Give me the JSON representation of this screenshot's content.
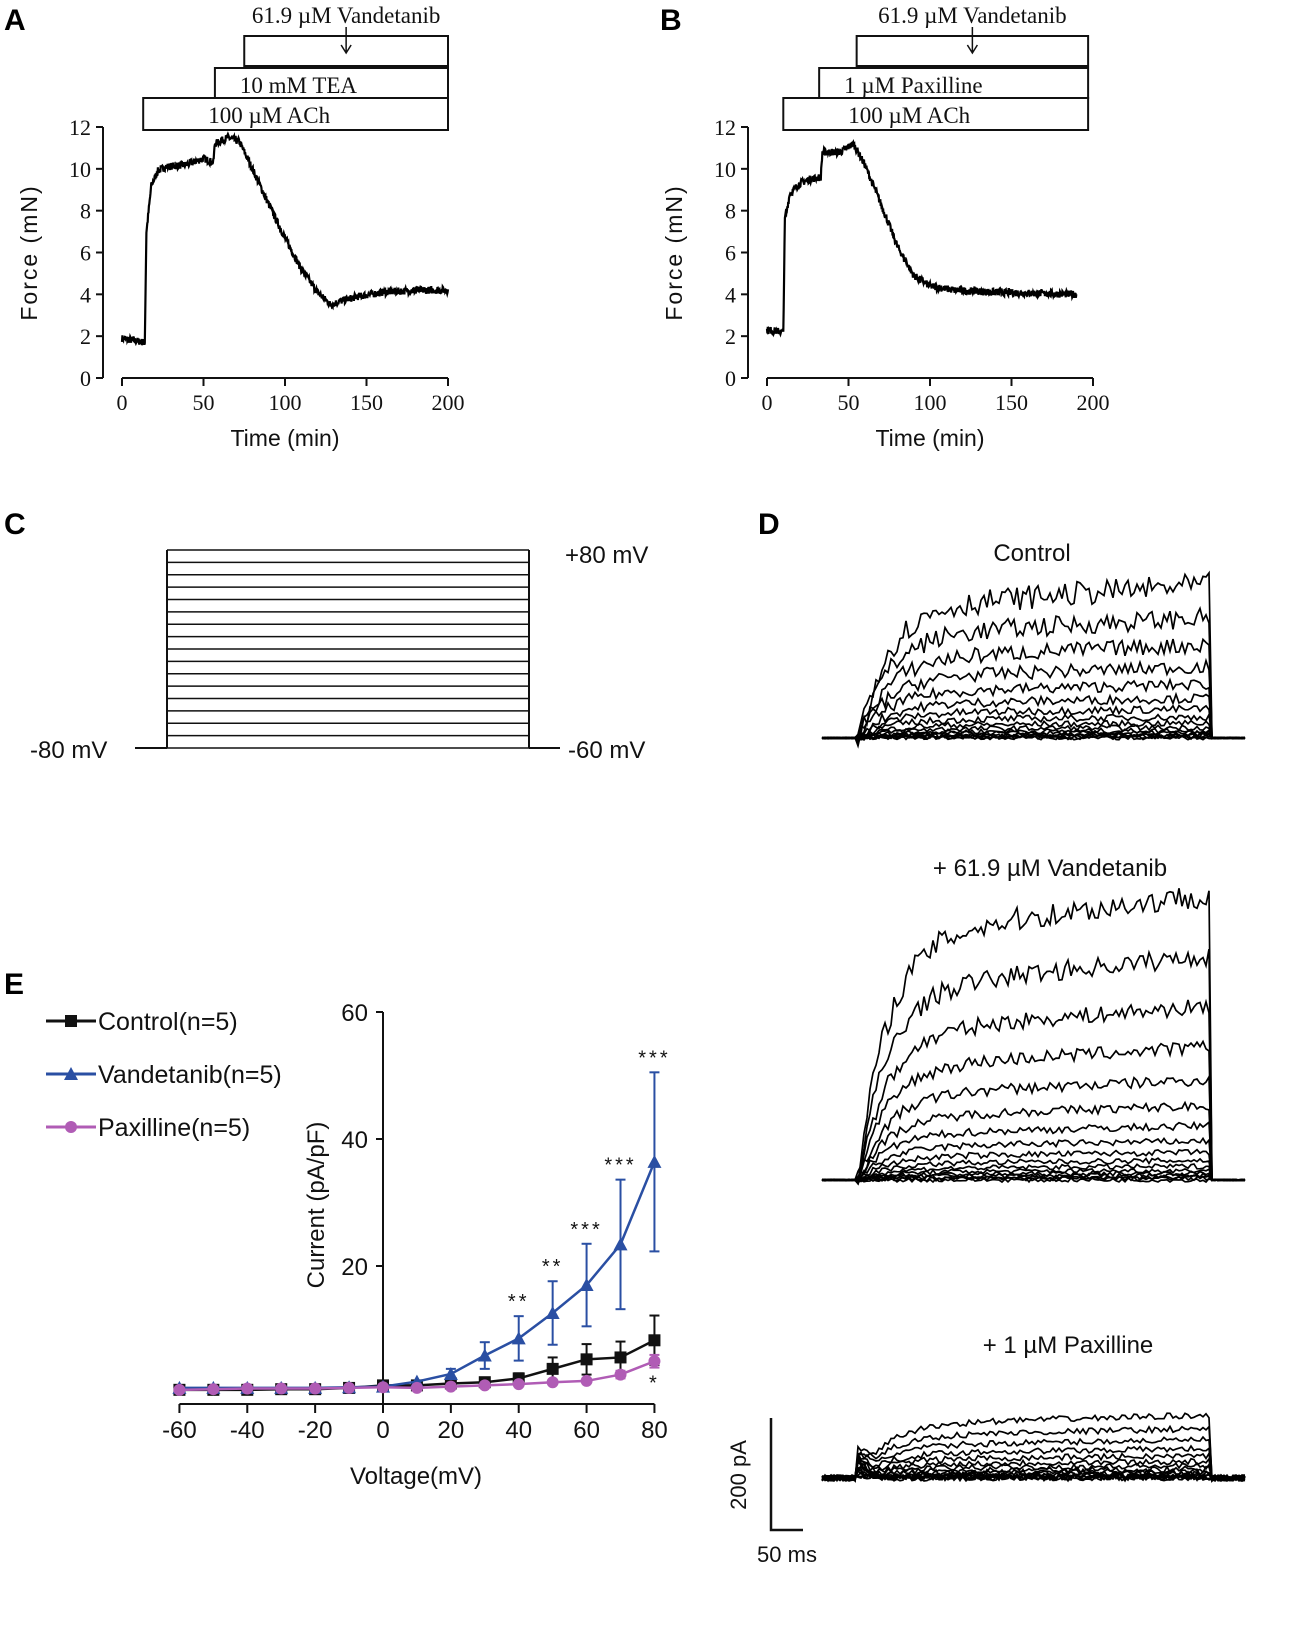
{
  "panel_letters": [
    "A",
    "B",
    "C",
    "D",
    "E"
  ],
  "chart_data": [
    {
      "panel": "A",
      "type": "line",
      "xlabel": "Time (min)",
      "ylabel": "Force (mN)",
      "xlim": [
        0,
        200
      ],
      "ylim": [
        0,
        12
      ],
      "xticks": [
        "0",
        "50",
        "100",
        "150",
        "200"
      ],
      "yticks": [
        "0",
        "2",
        "4",
        "6",
        "8",
        "10",
        "12"
      ],
      "treatments": [
        {
          "label": "100 µM ACh",
          "start": 13,
          "end": 200
        },
        {
          "label": "10 mM TEA",
          "start": 57,
          "end": 200
        },
        {
          "label": "",
          "start": 75,
          "end": 200
        }
      ],
      "arrow_label": "61.9 µM Vandetanib",
      "trace": [
        [
          0,
          1.9
        ],
        [
          14,
          1.7
        ],
        [
          15,
          7
        ],
        [
          18,
          9.2
        ],
        [
          22,
          9.9
        ],
        [
          27,
          10.1
        ],
        [
          40,
          10.2
        ],
        [
          50,
          10.5
        ],
        [
          56,
          10.3
        ],
        [
          57,
          11.2
        ],
        [
          65,
          11.5
        ],
        [
          72,
          11.3
        ],
        [
          80,
          10
        ],
        [
          90,
          8.3
        ],
        [
          100,
          6.7
        ],
        [
          110,
          5.2
        ],
        [
          120,
          4.1
        ],
        [
          128,
          3.5
        ],
        [
          135,
          3.7
        ],
        [
          145,
          3.9
        ],
        [
          160,
          4.1
        ],
        [
          180,
          4.2
        ],
        [
          200,
          4.2
        ]
      ]
    },
    {
      "panel": "B",
      "type": "line",
      "xlabel": "Time (min)",
      "ylabel": "Force (mN)",
      "xlim": [
        0,
        200
      ],
      "ylim": [
        0,
        12
      ],
      "xticks": [
        "0",
        "50",
        "100",
        "150",
        "200"
      ],
      "yticks": [
        "0",
        "2",
        "4",
        "6",
        "8",
        "10",
        "12"
      ],
      "treatments": [
        {
          "label": "100 µM ACh",
          "start": 10,
          "end": 197
        },
        {
          "label": "1 µM Paxilline",
          "start": 32,
          "end": 197
        },
        {
          "label": "",
          "start": 55,
          "end": 197
        }
      ],
      "arrow_label": "61.9 µM Vandetanib",
      "trace": [
        [
          0,
          2.3
        ],
        [
          10,
          2.2
        ],
        [
          11,
          7.6
        ],
        [
          14,
          8.8
        ],
        [
          20,
          9.3
        ],
        [
          26,
          9.5
        ],
        [
          33,
          9.6
        ],
        [
          34,
          10.8
        ],
        [
          45,
          10.8
        ],
        [
          53,
          11.2
        ],
        [
          60,
          10.2
        ],
        [
          70,
          8.3
        ],
        [
          80,
          6.3
        ],
        [
          90,
          4.9
        ],
        [
          100,
          4.4
        ],
        [
          115,
          4.2
        ],
        [
          140,
          4.1
        ],
        [
          190,
          4.0
        ]
      ]
    },
    {
      "panel": "C",
      "type": "line",
      "title": "Voltage step protocol",
      "step_labels": {
        "top": "+80 mV",
        "holding": "-80 mV",
        "tail": "-60 mV"
      },
      "steps_mV": [
        -80,
        -70,
        -60,
        -50,
        -40,
        -30,
        -20,
        -10,
        0,
        10,
        20,
        30,
        40,
        50,
        60,
        70,
        80
      ]
    },
    {
      "panel": "D",
      "type": "line",
      "traces": [
        {
          "title": "Control",
          "max_relative_amplitude": 0.55
        },
        {
          "title": "+  61.9 µM Vandetanib",
          "max_relative_amplitude": 1.0
        },
        {
          "title": "+ 1 µM Paxilline",
          "max_relative_amplitude": 0.22
        }
      ],
      "sweeps": 17,
      "scale_bar": {
        "current": "200 pA",
        "time": "50 ms"
      }
    },
    {
      "panel": "E",
      "type": "line",
      "xlabel": "Voltage(mV)",
      "ylabel": "Current (pA/pF)",
      "xlim": [
        -60,
        80
      ],
      "ylim": [
        0,
        60
      ],
      "xticks": [
        "-60",
        "-40",
        "-20",
        "0",
        "20",
        "40",
        "60",
        "80"
      ],
      "yticks": [
        "20",
        "40",
        "60"
      ],
      "x": [
        -60,
        -50,
        -40,
        -30,
        -20,
        -10,
        0,
        10,
        20,
        30,
        40,
        50,
        60,
        70,
        80
      ],
      "legend_position": "top-left",
      "series": [
        {
          "name": "Control(n=5)",
          "color": "#111111",
          "marker": "square",
          "values": [
            0.5,
            0.5,
            0.5,
            0.6,
            0.6,
            0.8,
            1.2,
            1.2,
            1.5,
            1.7,
            2.3,
            3.8,
            5.3,
            5.6,
            8.3
          ],
          "errors": [
            0.2,
            0.2,
            0.2,
            0.2,
            0.2,
            0.2,
            0.3,
            0.3,
            0.4,
            0.6,
            0.8,
            1.8,
            2.4,
            2.5,
            3.9
          ]
        },
        {
          "name": "Vandetanib(n=5)",
          "color": "#2a4fa3",
          "marker": "triangle",
          "values": [
            0.8,
            0.8,
            0.8,
            0.8,
            0.8,
            0.9,
            1.0,
            1.8,
            3.0,
            5.9,
            8.6,
            12.6,
            17.0,
            23.4,
            36.4
          ],
          "errors": [
            0.2,
            0.2,
            0.2,
            0.2,
            0.2,
            0.2,
            0.3,
            0.5,
            0.8,
            2.1,
            3.5,
            5.0,
            6.5,
            10.2,
            14.1
          ]
        },
        {
          "name": "Paxilline(n=5)",
          "color": "#b05cb5",
          "marker": "circle",
          "values": [
            0.5,
            0.6,
            0.7,
            0.7,
            0.7,
            0.8,
            0.9,
            0.8,
            1.0,
            1.2,
            1.4,
            1.7,
            1.9,
            2.9,
            5.0
          ],
          "errors": [
            0.2,
            0.2,
            0.2,
            0.2,
            0.2,
            0.2,
            0.2,
            0.2,
            0.3,
            0.3,
            0.3,
            0.4,
            0.5,
            0.6,
            1.0
          ]
        }
      ],
      "significance": [
        {
          "x": 40,
          "label": "**"
        },
        {
          "x": 50,
          "label": "**"
        },
        {
          "x": 60,
          "label": "***"
        },
        {
          "x": 70,
          "label": "***"
        },
        {
          "x": 80,
          "label": "***"
        },
        {
          "x": 80,
          "label": "*",
          "series": "Paxilline(n=5)"
        }
      ]
    }
  ]
}
